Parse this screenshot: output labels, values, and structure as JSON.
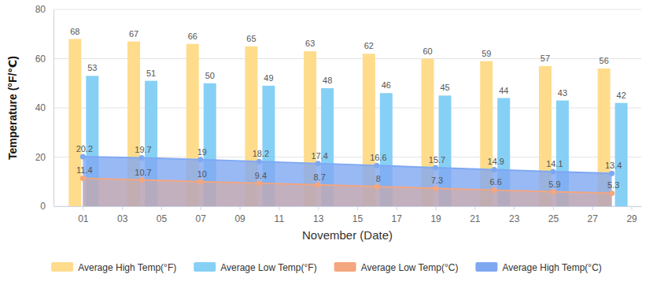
{
  "chart_data": {
    "type": "bar",
    "x_label": "November (Date)",
    "y_label": "Temperature (°F/℃)",
    "x": [
      1,
      4,
      7,
      10,
      13,
      16,
      19,
      22,
      25,
      28
    ],
    "xlim": [
      -0.5,
      29.5
    ],
    "xticks": [
      {
        "value": 1,
        "label": "01"
      },
      {
        "value": 3,
        "label": "03"
      },
      {
        "value": 5,
        "label": "05"
      },
      {
        "value": 7,
        "label": "07"
      },
      {
        "value": 9,
        "label": "09"
      },
      {
        "value": 11,
        "label": "11"
      },
      {
        "value": 13,
        "label": "13"
      },
      {
        "value": 15,
        "label": "15"
      },
      {
        "value": 17,
        "label": "17"
      },
      {
        "value": 19,
        "label": "19"
      },
      {
        "value": 21,
        "label": "21"
      },
      {
        "value": 23,
        "label": "23"
      },
      {
        "value": 25,
        "label": "25"
      },
      {
        "value": 27,
        "label": "27"
      },
      {
        "value": 29,
        "label": "29"
      }
    ],
    "ylim": [
      0,
      80
    ],
    "yticks": [
      0,
      20,
      40,
      60,
      80
    ],
    "grid": true,
    "legend": "bottom",
    "data_labels": true,
    "series": [
      {
        "name": "Average High Temp(°F)",
        "type": "bar",
        "color": "#fedc8c",
        "values": [
          68,
          67,
          66,
          65,
          63,
          62,
          60,
          59,
          57,
          56
        ]
      },
      {
        "name": "Average Low Temp(°F)",
        "type": "bar",
        "color": "#86d0f6",
        "values": [
          53,
          51,
          50,
          49,
          48,
          46,
          45,
          44,
          43,
          42
        ]
      },
      {
        "name": "Average Low Temp(°C)",
        "type": "area",
        "color": "#f4a67f",
        "values": [
          11.4,
          10.7,
          10,
          9.4,
          8.7,
          8,
          7.3,
          6.6,
          5.9,
          5.3
        ]
      },
      {
        "name": "Average High Temp(°C)",
        "type": "area",
        "color": "#7fa8f2",
        "values": [
          20.2,
          19.7,
          19,
          18.2,
          17.4,
          16.6,
          15.7,
          14.9,
          14.1,
          13.4
        ]
      }
    ]
  }
}
